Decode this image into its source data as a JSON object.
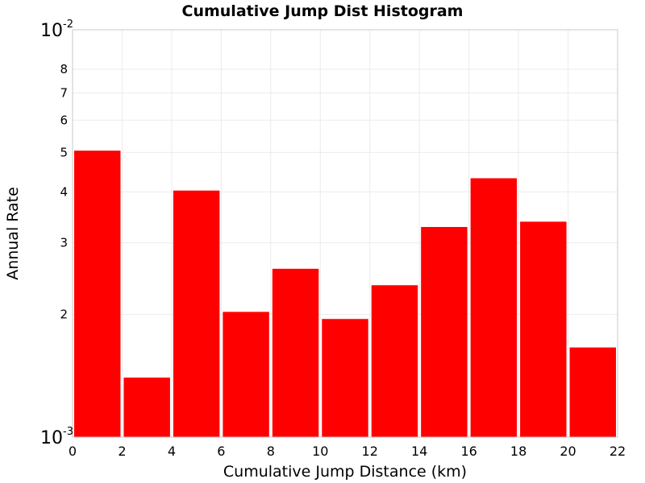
{
  "chart_data": {
    "type": "bar",
    "title": "Cumulative Jump Dist Histogram",
    "xlabel": "Cumulative Jump Distance (km)",
    "ylabel": "Annual Rate",
    "xlim": [
      0,
      22
    ],
    "ylim": [
      0.001,
      0.01
    ],
    "y_scale": "log",
    "grid": true,
    "bar_color": "#ff0000",
    "bin_width": 2,
    "bins": [
      {
        "x_start": 0,
        "x_end": 2,
        "value": 0.00505
      },
      {
        "x_start": 2,
        "x_end": 4,
        "value": 0.0014
      },
      {
        "x_start": 4,
        "x_end": 6,
        "value": 0.00403
      },
      {
        "x_start": 6,
        "x_end": 8,
        "value": 0.00203
      },
      {
        "x_start": 8,
        "x_end": 10,
        "value": 0.00259
      },
      {
        "x_start": 10,
        "x_end": 12,
        "value": 0.00195
      },
      {
        "x_start": 12,
        "x_end": 14,
        "value": 0.00236
      },
      {
        "x_start": 14,
        "x_end": 16,
        "value": 0.00328
      },
      {
        "x_start": 16,
        "x_end": 18,
        "value": 0.00432
      },
      {
        "x_start": 18,
        "x_end": 20,
        "value": 0.00338
      },
      {
        "x_start": 20,
        "x_end": 22,
        "value": 0.00166
      }
    ],
    "x_ticks": [
      "0",
      "2",
      "4",
      "6",
      "8",
      "10",
      "12",
      "14",
      "16",
      "18",
      "20",
      "22"
    ],
    "y_minor_ticks": [
      {
        "value": 0.002,
        "label": "2"
      },
      {
        "value": 0.003,
        "label": "3"
      },
      {
        "value": 0.004,
        "label": "4"
      },
      {
        "value": 0.005,
        "label": "5"
      },
      {
        "value": 0.006,
        "label": "6"
      },
      {
        "value": 0.007,
        "label": "7"
      },
      {
        "value": 0.008,
        "label": "8"
      }
    ],
    "y_decade_ticks": [
      {
        "value": 0.001,
        "base": "10",
        "exp": "-3"
      },
      {
        "value": 0.01,
        "base": "10",
        "exp": "-2"
      }
    ]
  }
}
